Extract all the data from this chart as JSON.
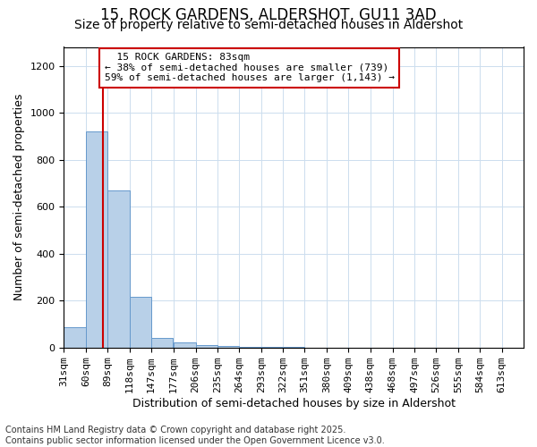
{
  "title1": "15, ROCK GARDENS, ALDERSHOT, GU11 3AD",
  "title2": "Size of property relative to semi-detached houses in Aldershot",
  "xlabel": "Distribution of semi-detached houses by size in Aldershot",
  "ylabel": "Number of semi-detached properties",
  "footnote": "Contains HM Land Registry data © Crown copyright and database right 2025.\nContains public sector information licensed under the Open Government Licence v3.0.",
  "bin_labels": [
    "31sqm",
    "60sqm",
    "89sqm",
    "118sqm",
    "147sqm",
    "177sqm",
    "206sqm",
    "235sqm",
    "264sqm",
    "293sqm",
    "322sqm",
    "351sqm",
    "380sqm",
    "409sqm",
    "438sqm",
    "468sqm",
    "497sqm",
    "526sqm",
    "555sqm",
    "584sqm",
    "613sqm"
  ],
  "bin_edges": [
    31,
    60,
    89,
    118,
    147,
    177,
    206,
    235,
    264,
    293,
    322,
    351,
    380,
    409,
    438,
    468,
    497,
    526,
    555,
    584,
    613
  ],
  "bar_values": [
    85,
    920,
    670,
    215,
    40,
    20,
    10,
    5,
    2,
    1,
    1,
    0,
    0,
    0,
    0,
    0,
    0,
    0,
    0,
    0,
    0
  ],
  "bar_color": "#b8d0e8",
  "bar_edgecolor": "#6699cc",
  "property_size": 83,
  "property_label": "15 ROCK GARDENS: 83sqm",
  "pct_smaller": 38,
  "pct_larger": 59,
  "n_smaller": 739,
  "n_larger": 1143,
  "vline_color": "#cc0000",
  "annotation_box_color": "#cc0000",
  "ylim": [
    0,
    1280
  ],
  "yticks": [
    0,
    200,
    400,
    600,
    800,
    1000,
    1200
  ],
  "background_color": "#ffffff",
  "grid_color": "#ccddee",
  "title1_fontsize": 12,
  "title2_fontsize": 10,
  "xlabel_fontsize": 9,
  "ylabel_fontsize": 9,
  "tick_fontsize": 8,
  "annotation_fontsize": 8,
  "footnote_fontsize": 7
}
